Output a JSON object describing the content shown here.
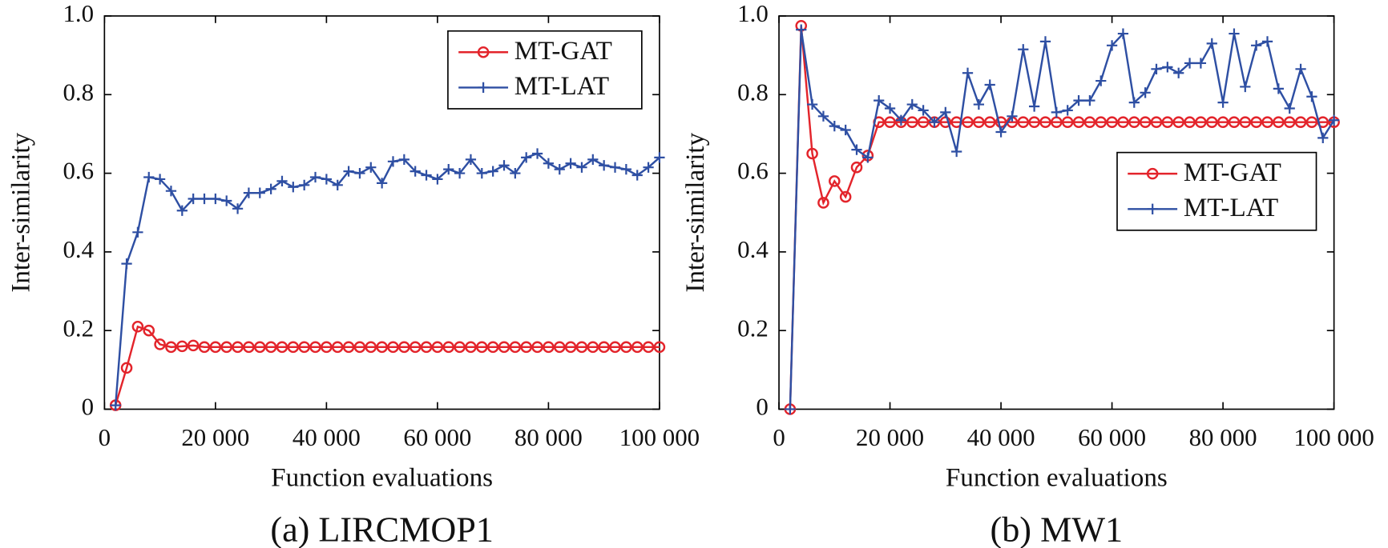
{
  "chart_data": [
    {
      "type": "line",
      "title": "(a) LIRCMOP1",
      "x_label": "Function evaluations",
      "y_label": "Inter-similarity",
      "x": [
        2000,
        4000,
        6000,
        8000,
        10000,
        12000,
        14000,
        16000,
        18000,
        20000,
        22000,
        24000,
        26000,
        28000,
        30000,
        32000,
        34000,
        36000,
        38000,
        40000,
        42000,
        44000,
        46000,
        48000,
        50000,
        52000,
        54000,
        56000,
        58000,
        60000,
        62000,
        64000,
        66000,
        68000,
        70000,
        72000,
        74000,
        76000,
        78000,
        80000,
        82000,
        84000,
        86000,
        88000,
        90000,
        92000,
        94000,
        96000,
        98000,
        100000
      ],
      "series": [
        {
          "name": "MT-GAT",
          "color": "#e3242b",
          "marker": "circle",
          "values": [
            0.01,
            0.105,
            0.21,
            0.2,
            0.165,
            0.158,
            0.16,
            0.162,
            0.158,
            0.158,
            0.158,
            0.158,
            0.158,
            0.158,
            0.158,
            0.158,
            0.158,
            0.158,
            0.158,
            0.158,
            0.158,
            0.158,
            0.158,
            0.158,
            0.158,
            0.158,
            0.158,
            0.158,
            0.158,
            0.158,
            0.158,
            0.158,
            0.158,
            0.158,
            0.158,
            0.158,
            0.158,
            0.158,
            0.158,
            0.158,
            0.158,
            0.158,
            0.158,
            0.158,
            0.158,
            0.158,
            0.158,
            0.158,
            0.158,
            0.158
          ]
        },
        {
          "name": "MT-LAT",
          "color": "#2e4fa3",
          "marker": "plus",
          "values": [
            0.01,
            0.37,
            0.45,
            0.59,
            0.585,
            0.555,
            0.505,
            0.535,
            0.535,
            0.535,
            0.53,
            0.51,
            0.55,
            0.55,
            0.56,
            0.58,
            0.565,
            0.57,
            0.59,
            0.585,
            0.57,
            0.605,
            0.6,
            0.615,
            0.575,
            0.63,
            0.635,
            0.605,
            0.595,
            0.585,
            0.61,
            0.6,
            0.635,
            0.6,
            0.605,
            0.62,
            0.6,
            0.64,
            0.65,
            0.625,
            0.61,
            0.625,
            0.615,
            0.635,
            0.62,
            0.615,
            0.61,
            0.595,
            0.615,
            0.64
          ]
        }
      ],
      "xlim": [
        0,
        100000
      ],
      "xticks": [
        0,
        {
          "value": 20000,
          "label": "20 000"
        },
        {
          "value": 40000,
          "label": "40 000"
        },
        {
          "value": 60000,
          "label": "60 000"
        },
        {
          "value": 80000,
          "label": "80 000"
        },
        {
          "value": 100000,
          "label": "100 000"
        }
      ],
      "ylim": [
        0,
        1
      ],
      "yticks": [
        0,
        0.2,
        0.4,
        0.6,
        0.8,
        {
          "value": 1,
          "label": "1.0"
        }
      ],
      "legend": "upper right"
    },
    {
      "type": "line",
      "title": "(b) MW1",
      "x_label": "Function evaluations",
      "y_label": "Inter-similarity",
      "x": [
        2000,
        4000,
        6000,
        8000,
        10000,
        12000,
        14000,
        16000,
        18000,
        20000,
        22000,
        24000,
        26000,
        28000,
        30000,
        32000,
        34000,
        36000,
        38000,
        40000,
        42000,
        44000,
        46000,
        48000,
        50000,
        52000,
        54000,
        56000,
        58000,
        60000,
        62000,
        64000,
        66000,
        68000,
        70000,
        72000,
        74000,
        76000,
        78000,
        80000,
        82000,
        84000,
        86000,
        88000,
        90000,
        92000,
        94000,
        96000,
        98000,
        100000
      ],
      "series": [
        {
          "name": "MT-GAT",
          "color": "#e3242b",
          "marker": "circle",
          "values": [
            0,
            0.975,
            0.65,
            0.525,
            0.58,
            0.54,
            0.615,
            0.645,
            0.73,
            0.73,
            0.73,
            0.73,
            0.73,
            0.73,
            0.73,
            0.73,
            0.73,
            0.73,
            0.73,
            0.73,
            0.73,
            0.73,
            0.73,
            0.73,
            0.73,
            0.73,
            0.73,
            0.73,
            0.73,
            0.73,
            0.73,
            0.73,
            0.73,
            0.73,
            0.73,
            0.73,
            0.73,
            0.73,
            0.73,
            0.73,
            0.73,
            0.73,
            0.73,
            0.73,
            0.73,
            0.73,
            0.73,
            0.73,
            0.73,
            0.73
          ]
        },
        {
          "name": "MT-LAT",
          "color": "#2e4fa3",
          "marker": "plus",
          "values": [
            0,
            0.965,
            0.775,
            0.745,
            0.72,
            0.71,
            0.66,
            0.64,
            0.785,
            0.765,
            0.735,
            0.775,
            0.76,
            0.73,
            0.755,
            0.655,
            0.855,
            0.775,
            0.825,
            0.705,
            0.745,
            0.915,
            0.77,
            0.935,
            0.755,
            0.76,
            0.785,
            0.785,
            0.835,
            0.925,
            0.955,
            0.78,
            0.805,
            0.865,
            0.87,
            0.855,
            0.88,
            0.88,
            0.93,
            0.78,
            0.955,
            0.82,
            0.925,
            0.935,
            0.815,
            0.765,
            0.865,
            0.795,
            0.69,
            0.735
          ]
        }
      ],
      "xlim": [
        0,
        100000
      ],
      "xticks": [
        0,
        {
          "value": 20000,
          "label": "20 000"
        },
        {
          "value": 40000,
          "label": "40 000"
        },
        {
          "value": 60000,
          "label": "60 000"
        },
        {
          "value": 80000,
          "label": "80 000"
        },
        {
          "value": 100000,
          "label": "100 000"
        }
      ],
      "ylim": [
        0,
        1
      ],
      "yticks": [
        0,
        0.2,
        0.4,
        0.6,
        0.8,
        {
          "value": 1,
          "label": "1.0"
        }
      ],
      "legend": "center right"
    }
  ]
}
